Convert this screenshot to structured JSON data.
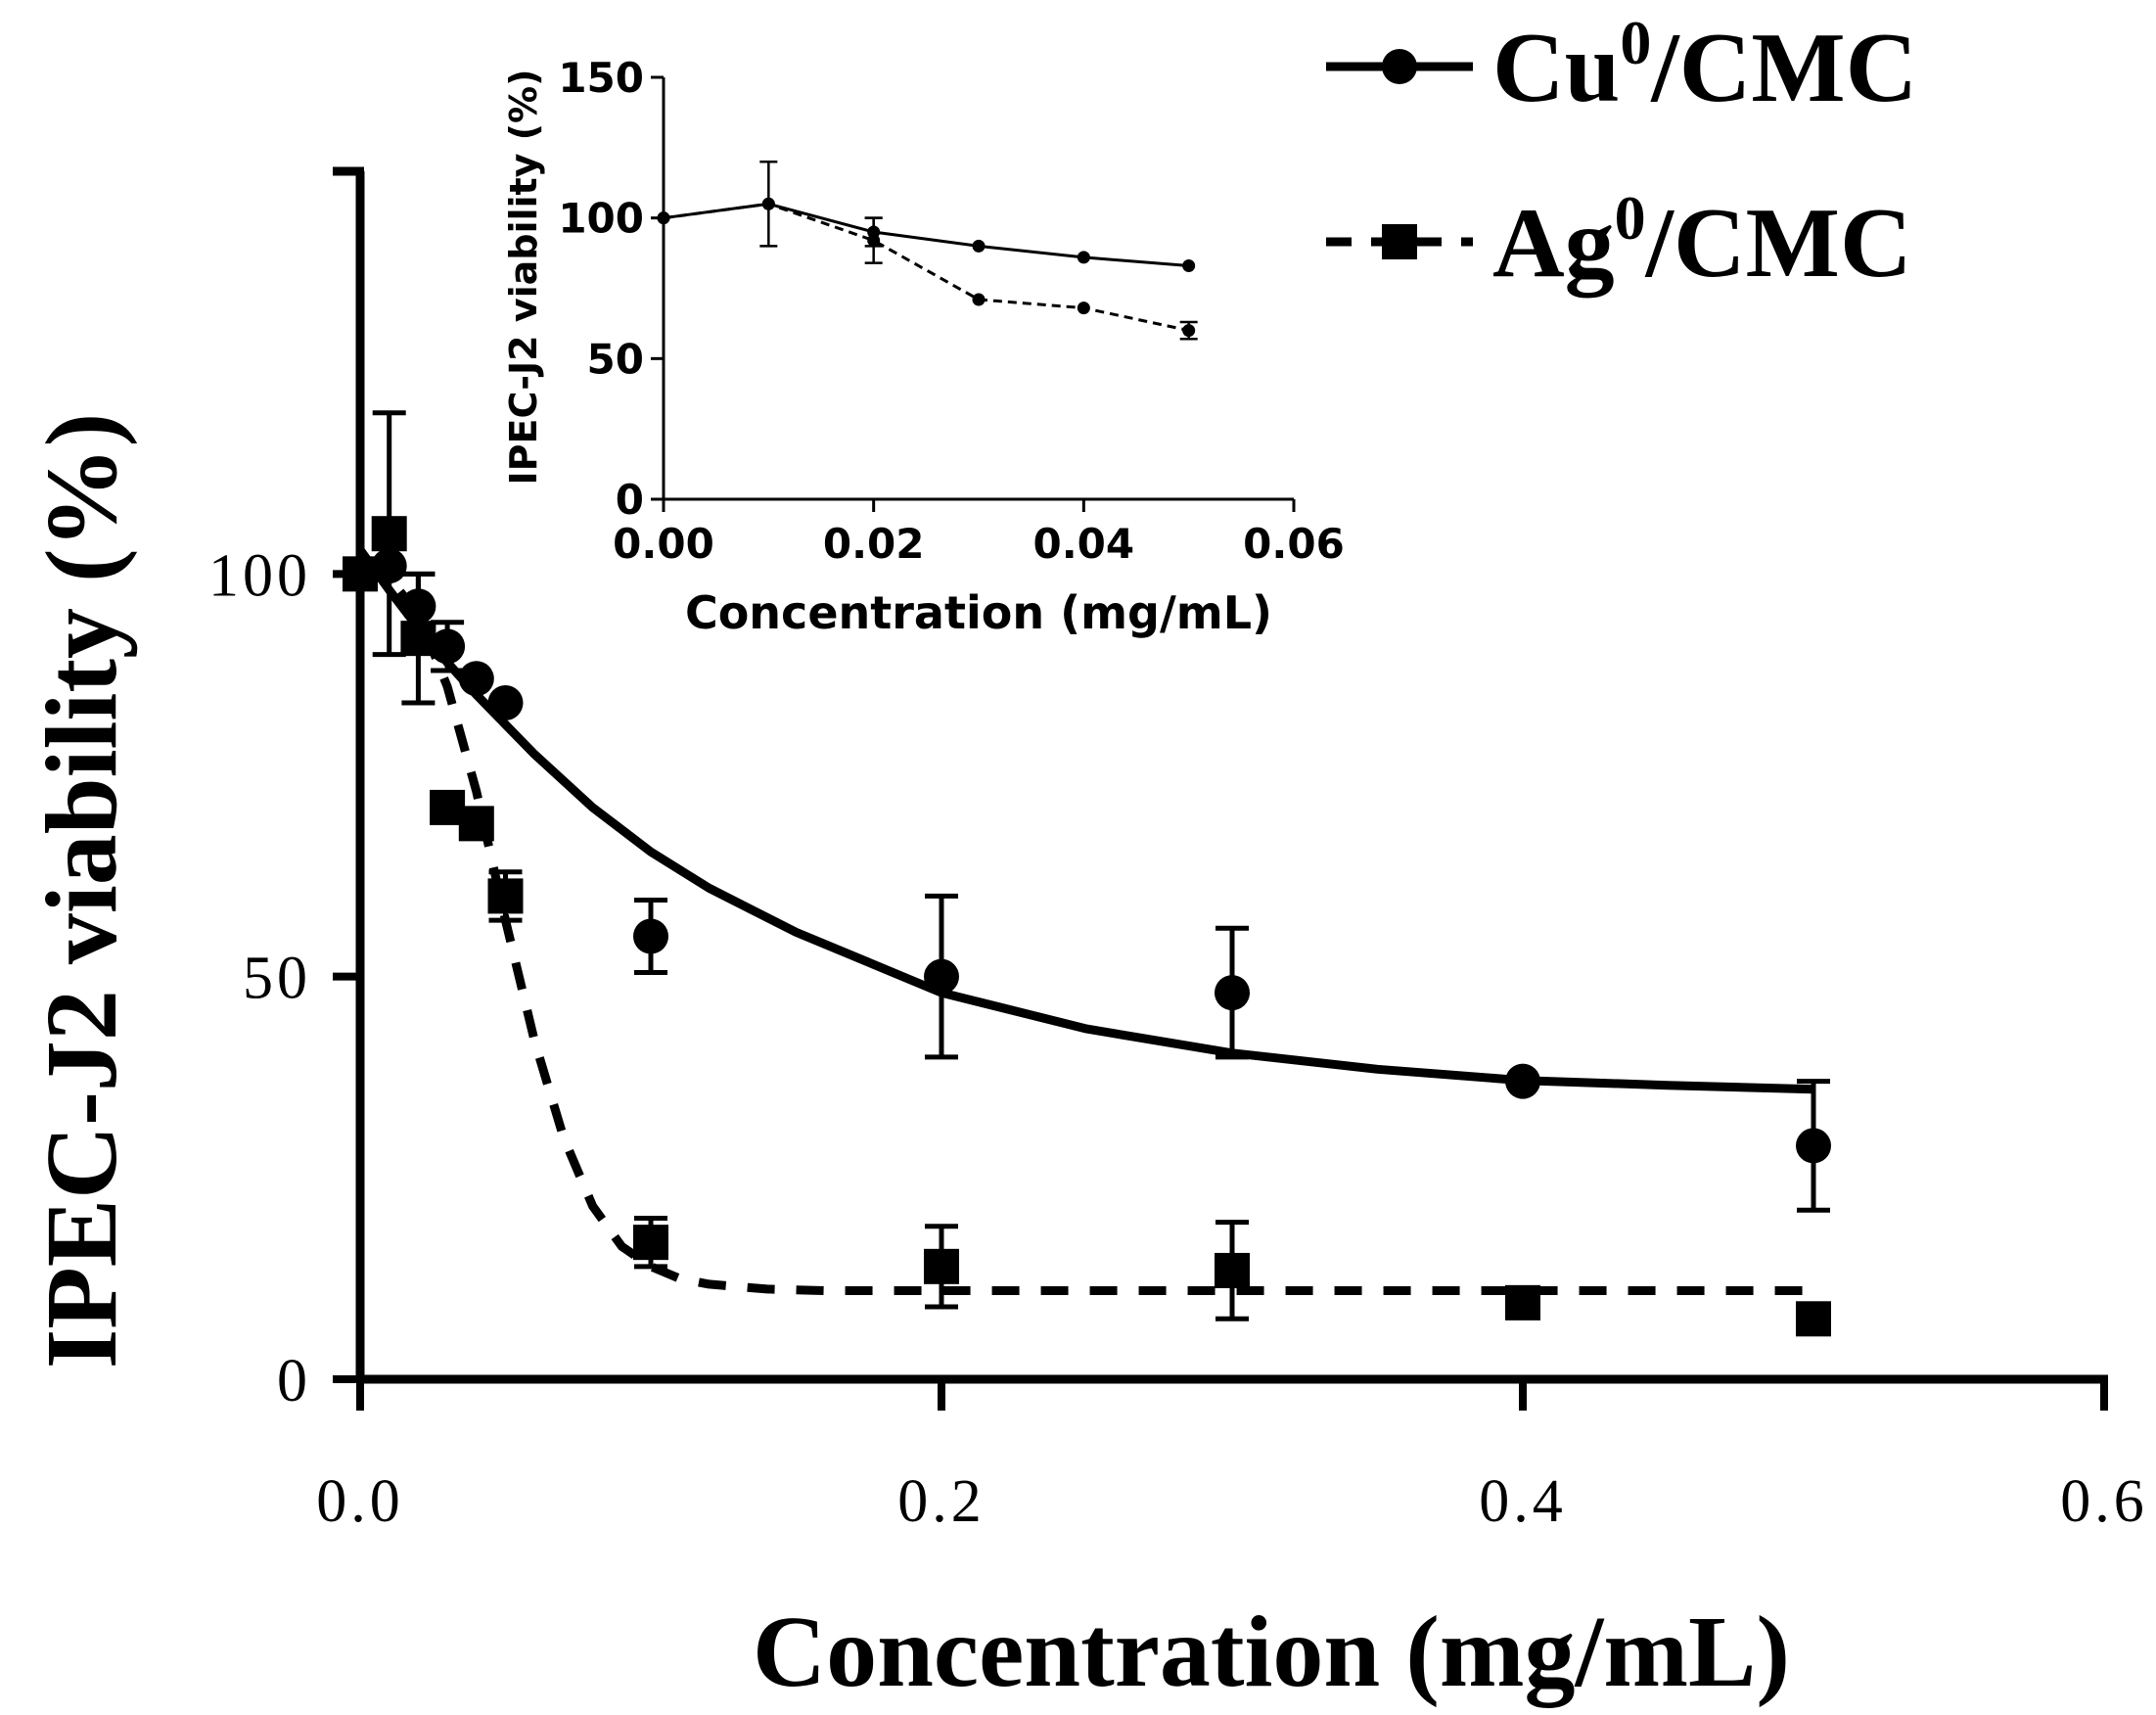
{
  "chart_data": {
    "type": "scatter",
    "main": {
      "title": "",
      "xlabel": "Concentration (mg/mL)",
      "ylabel": "IPEC-J2 viability (%)",
      "xlim": [
        0.0,
        0.6
      ],
      "ylim": [
        0,
        150
      ],
      "xticks": [
        0.0,
        0.2,
        0.4,
        0.6
      ],
      "xtick_labels": [
        "0.0",
        "0.2",
        "0.4",
        "0.6"
      ],
      "yticks": [
        0,
        50,
        100
      ],
      "ytick_labels": [
        "0",
        "50",
        "100"
      ],
      "legend_position": "top-right",
      "series": [
        {
          "name": "Cu0/CMC",
          "legend_base": "Cu",
          "legend_sup": "0",
          "legend_rest": "/CMC",
          "marker": "circle",
          "line": "solid",
          "x": [
            0.0,
            0.01,
            0.02,
            0.03,
            0.04,
            0.05,
            0.1,
            0.2,
            0.3,
            0.4,
            0.5
          ],
          "y": [
            100,
            101,
            96,
            91,
            87,
            84,
            55,
            50,
            48,
            37,
            29
          ],
          "err": [
            0,
            0,
            4,
            3,
            0,
            0,
            4.5,
            10,
            8,
            0,
            8
          ],
          "fit_x": [
            0.0,
            0.01,
            0.02,
            0.03,
            0.04,
            0.05,
            0.06,
            0.08,
            0.1,
            0.12,
            0.15,
            0.2,
            0.25,
            0.3,
            0.35,
            0.4,
            0.45,
            0.5
          ],
          "fit_y": [
            103.0,
            98.0,
            93.3,
            89.0,
            85.0,
            81.3,
            77.6,
            71.0,
            65.5,
            61.0,
            55.5,
            48.0,
            43.5,
            40.5,
            38.5,
            37.1,
            36.5,
            36.0
          ]
        },
        {
          "name": "Ag0/CMC",
          "legend_base": "Ag",
          "legend_sup": "0",
          "legend_rest": "/CMC",
          "marker": "square",
          "line": "dashed",
          "x": [
            0.0,
            0.01,
            0.02,
            0.03,
            0.04,
            0.05,
            0.1,
            0.2,
            0.3,
            0.4,
            0.5
          ],
          "y": [
            100,
            105,
            92,
            71,
            69,
            60,
            17,
            14,
            13.5,
            9.5,
            7.5
          ],
          "err": [
            0,
            15,
            8,
            0,
            0,
            3,
            3,
            5,
            6,
            0,
            0
          ],
          "fit_x": [
            0.0,
            0.01,
            0.02,
            0.03,
            0.04,
            0.05,
            0.06,
            0.07,
            0.08,
            0.09,
            0.1,
            0.11,
            0.12,
            0.14,
            0.16,
            0.2,
            0.3,
            0.4,
            0.5
          ],
          "fit_y": [
            101.0,
            99.5,
            95.0,
            86.0,
            73.0,
            57.0,
            42.0,
            30.0,
            21.5,
            16.5,
            14.0,
            12.5,
            11.8,
            11.2,
            11.0,
            11.0,
            11.0,
            11.0,
            11.0
          ]
        }
      ]
    },
    "inset": {
      "xlabel": "Concentration (mg/mL)",
      "ylabel": "IPEC-J2 viability (%)",
      "xlim": [
        0.0,
        0.06
      ],
      "ylim": [
        0,
        150
      ],
      "xticks": [
        0.0,
        0.02,
        0.04,
        0.06
      ],
      "xtick_labels": [
        "0.00",
        "0.02",
        "0.04",
        "0.06"
      ],
      "yticks": [
        0,
        50,
        100,
        150
      ],
      "ytick_labels": [
        "0",
        "50",
        "100",
        "150"
      ],
      "series": [
        {
          "name": "Cu0/CMC",
          "line": "solid",
          "x": [
            0.0,
            0.01,
            0.02,
            0.03,
            0.04,
            0.05
          ],
          "y": [
            100,
            105,
            95,
            90,
            86,
            83
          ],
          "err": [
            0,
            15,
            5,
            0,
            0,
            0
          ]
        },
        {
          "name": "Ag0/CMC",
          "line": "dashed",
          "x": [
            0.0,
            0.01,
            0.02,
            0.03,
            0.04,
            0.05
          ],
          "y": [
            100,
            105,
            92,
            71,
            68,
            60
          ],
          "err": [
            0,
            0,
            8,
            0,
            0,
            3
          ]
        }
      ]
    }
  }
}
